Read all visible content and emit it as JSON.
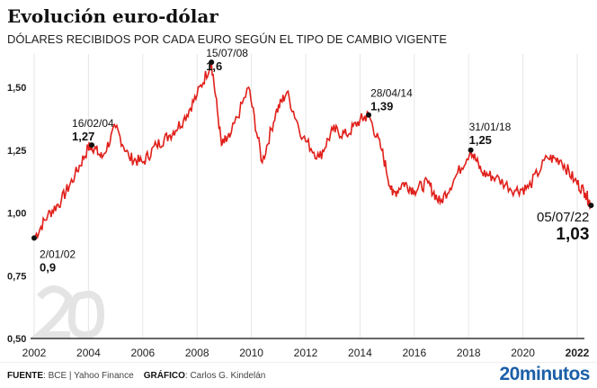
{
  "title": "Evolución euro-dólar",
  "subtitle": "DÓLARES RECIBIDOS POR CADA EURO SEGÚN EL TIPO DE CAMBIO VIGENTE",
  "footer": {
    "source_label": "FUENTE",
    "source": "BCE | Yahoo Finance",
    "graphic_label": "GRÁFICO",
    "graphic": "Carlos G. Kindelán",
    "brand": "20minutos"
  },
  "chart_data": {
    "type": "line",
    "title": "Evolución euro-dólar",
    "xlim": [
      2002,
      2022.5
    ],
    "ylim": [
      0.5,
      1.6
    ],
    "xticks": [
      "2002",
      "2004",
      "2006",
      "2008",
      "2010",
      "2012",
      "2014",
      "2016",
      "2018",
      "2020",
      "2022"
    ],
    "yticks": [
      "0,50",
      "0,75",
      "1,00",
      "1,25",
      "1,50"
    ],
    "grid": "vertical",
    "color": "#e0201b",
    "series": [
      {
        "x": [
          2002.0,
          2002.5,
          2003.0,
          2003.5,
          2004.0,
          2004.12,
          2004.5,
          2005.0,
          2005.5,
          2006.0,
          2006.5,
          2007.0,
          2007.5,
          2008.0,
          2008.53,
          2008.9,
          2009.2,
          2009.9,
          2010.4,
          2010.9,
          2011.3,
          2011.9,
          2012.5,
          2013.0,
          2013.5,
          2014.0,
          2014.32,
          2014.8,
          2015.2,
          2015.6,
          2016.0,
          2016.5,
          2016.95,
          2017.5,
          2018.08,
          2018.5,
          2019.0,
          2019.7,
          2020.2,
          2020.9,
          2021.4,
          2021.9,
          2022.3,
          2022.51
        ],
        "y": [
          0.9,
          0.99,
          1.05,
          1.15,
          1.26,
          1.27,
          1.22,
          1.34,
          1.22,
          1.2,
          1.27,
          1.31,
          1.37,
          1.47,
          1.6,
          1.27,
          1.3,
          1.5,
          1.2,
          1.4,
          1.48,
          1.3,
          1.22,
          1.33,
          1.31,
          1.37,
          1.39,
          1.25,
          1.07,
          1.12,
          1.09,
          1.12,
          1.04,
          1.14,
          1.25,
          1.16,
          1.14,
          1.09,
          1.1,
          1.22,
          1.21,
          1.13,
          1.08,
          1.03
        ]
      }
    ],
    "annotations": [
      {
        "date": "2/01/02",
        "value": "0,9",
        "x": 2002.0,
        "y": 0.9
      },
      {
        "date": "16/02/04",
        "value": "1,27",
        "x": 2004.12,
        "y": 1.27
      },
      {
        "date": "15/07/08",
        "value": "1,6",
        "x": 2008.53,
        "y": 1.6
      },
      {
        "date": "28/04/14",
        "value": "1,39",
        "x": 2014.32,
        "y": 1.39
      },
      {
        "date": "31/01/18",
        "value": "1,25",
        "x": 2018.08,
        "y": 1.25
      },
      {
        "date": "05/07/22",
        "value": "1,03",
        "x": 2022.51,
        "y": 1.03
      }
    ]
  }
}
